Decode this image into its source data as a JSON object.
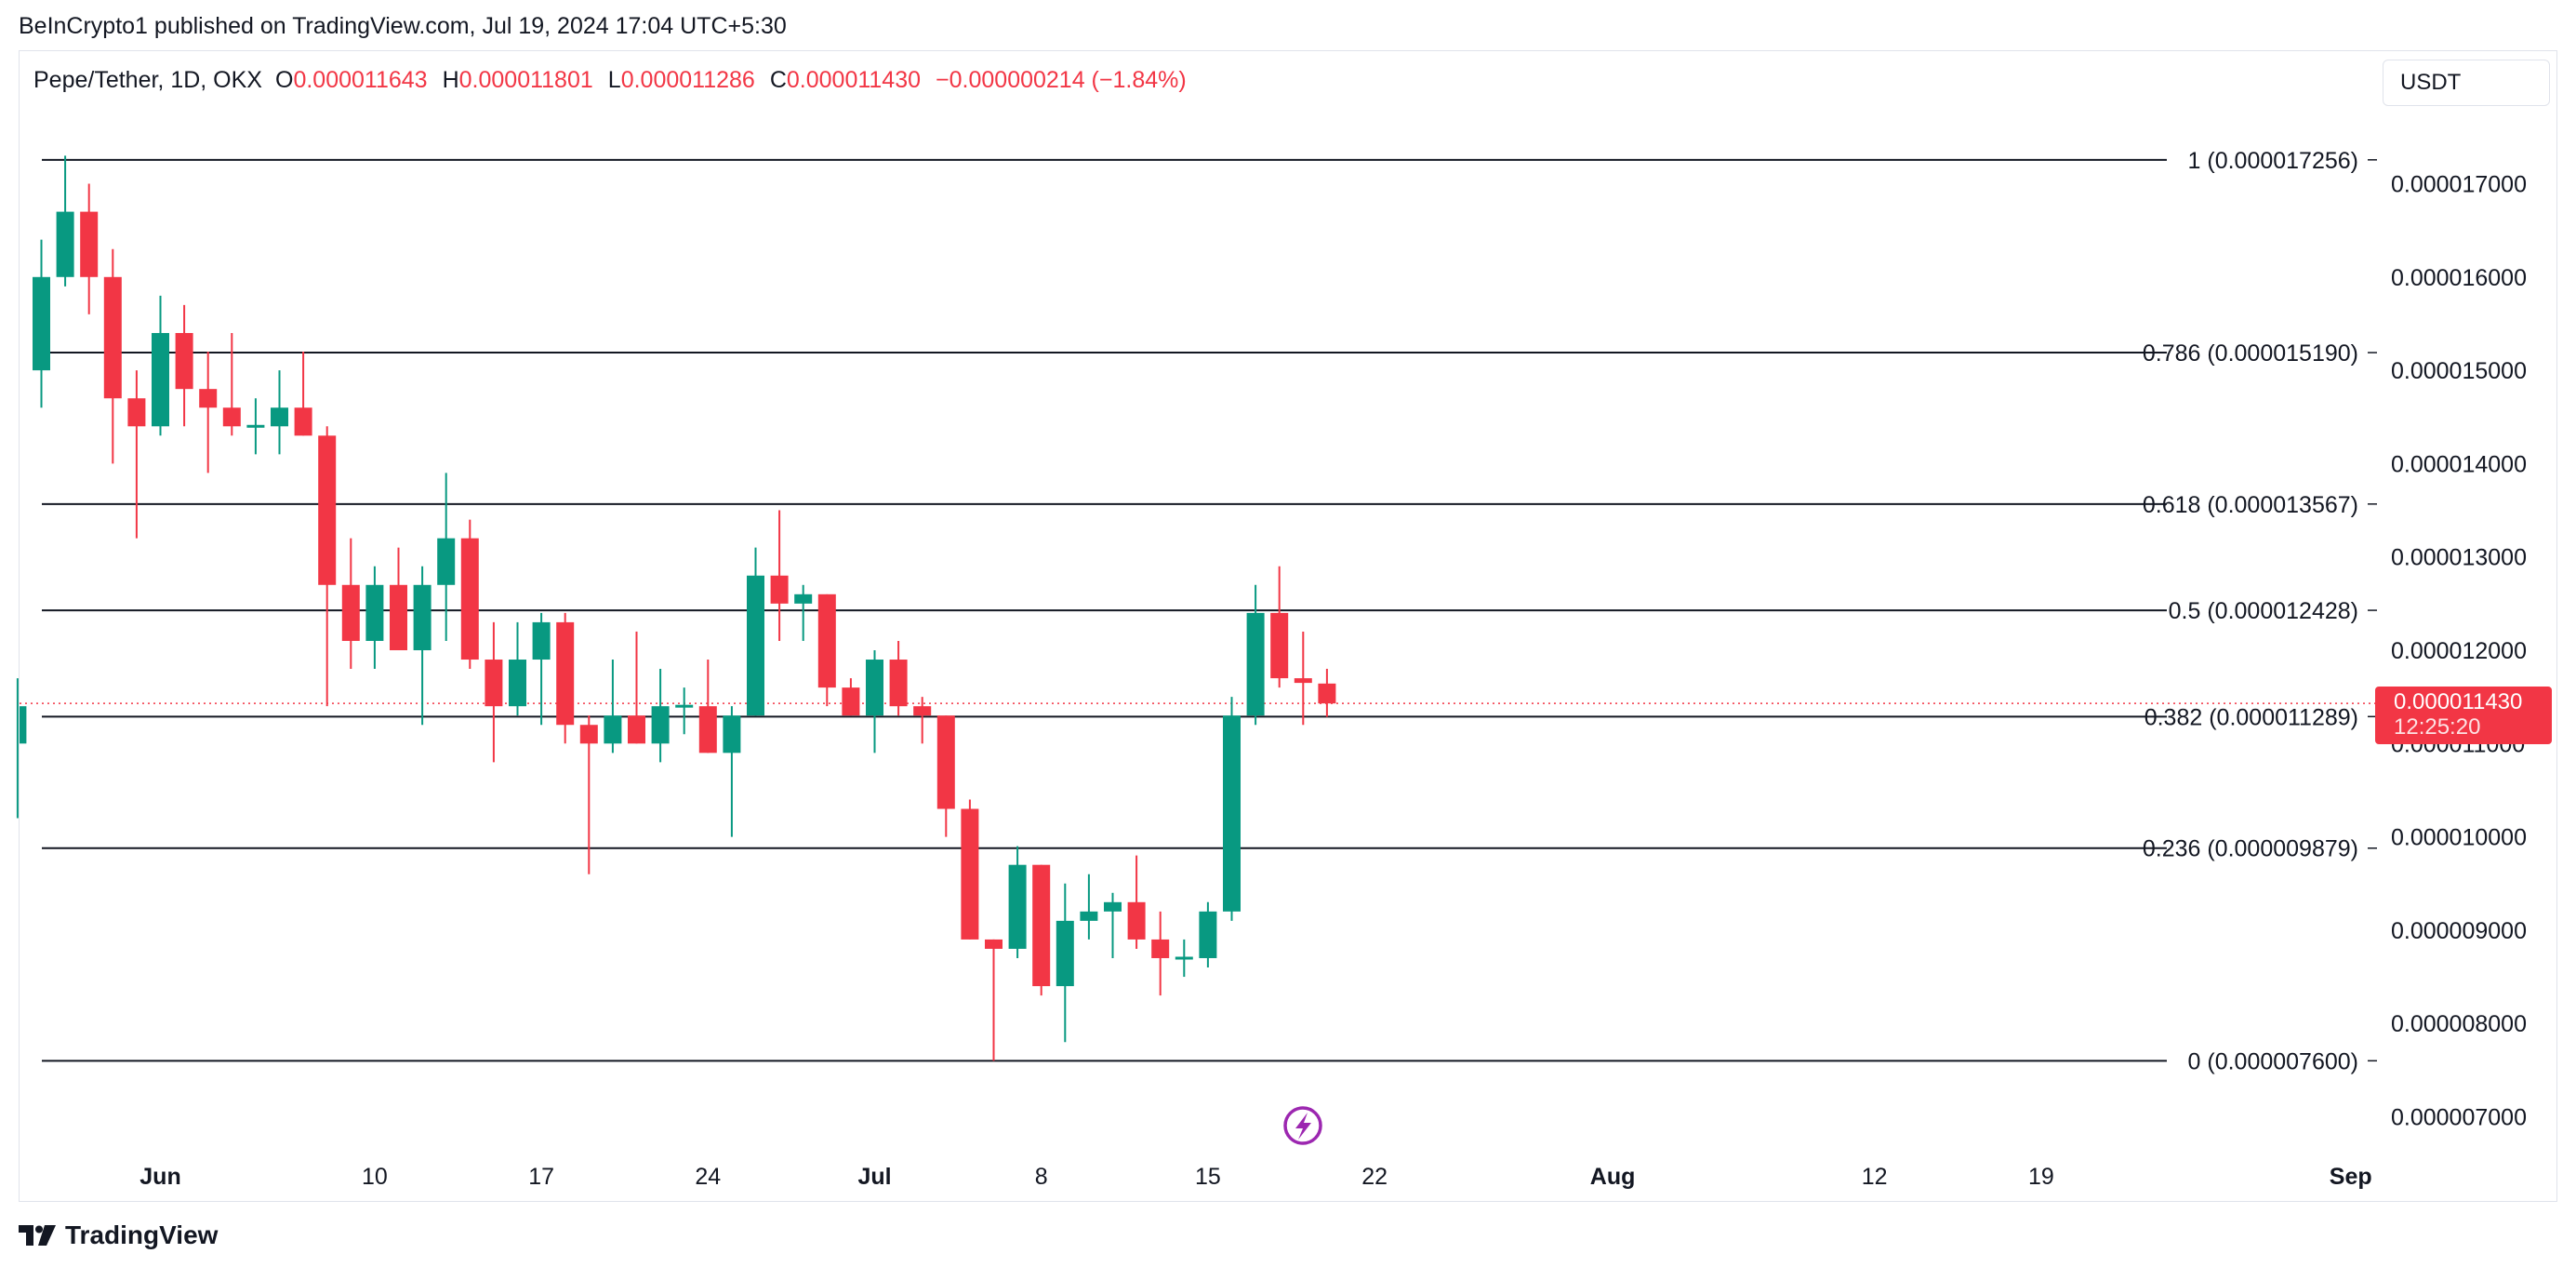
{
  "attribution": "BeInCrypto1 published on TradingView.com, Jul 19, 2024 17:04 UTC+5:30",
  "legend": {
    "symbol": "Pepe/Tether, 1D, OKX",
    "o_label": "O",
    "o_value": "0.000011643",
    "h_label": "H",
    "h_value": "0.000011801",
    "l_label": "L",
    "l_value": "0.000011286",
    "c_label": "C",
    "c_value": "0.000011430",
    "change": "−0.000000214 (−1.84%)"
  },
  "currency_button": "USDT",
  "brand": "TradingView",
  "last_price": {
    "value": "0.000011430",
    "countdown": "12:25:20"
  },
  "colors": {
    "up": "#089981",
    "down": "#f23645",
    "fib_line": "#131722",
    "price_line": "#f23645",
    "lightning": "#9c27b0"
  },
  "chart_data": {
    "type": "candlestick",
    "title": "",
    "x_ticks": [
      {
        "day": 0,
        "label": "Jun"
      },
      {
        "day": 9,
        "label": "10"
      },
      {
        "day": 16,
        "label": "17"
      },
      {
        "day": 23,
        "label": "24"
      },
      {
        "day": 30,
        "label": "Jul"
      },
      {
        "day": 37,
        "label": "8"
      },
      {
        "day": 44,
        "label": "15"
      },
      {
        "day": 51,
        "label": "22"
      },
      {
        "day": 61,
        "label": "Aug"
      },
      {
        "day": 72,
        "label": "12"
      },
      {
        "day": 79,
        "label": "19"
      },
      {
        "day": 92,
        "label": "Sep"
      }
    ],
    "y_range": [
      6.5e-06,
      1.84e-05
    ],
    "y_ticks": [
      "0.000017000",
      "0.000016000",
      "0.000015000",
      "0.000014000",
      "0.000013000",
      "0.000012000",
      "0.000011000",
      "0.000010000",
      "0.000009000",
      "0.000008000",
      "0.000007000"
    ],
    "y_tick_values": [
      1.7e-05,
      1.6e-05,
      1.5e-05,
      1.4e-05,
      1.3e-05,
      1.2e-05,
      1.1e-05,
      1e-05,
      9e-06,
      8e-06,
      7e-06
    ],
    "fib_levels": [
      {
        "value": 1.7256e-05,
        "label": "1 (0.000017256)"
      },
      {
        "value": 1.519e-05,
        "label": "0.786 (0.000015190)"
      },
      {
        "value": 1.3567e-05,
        "label": "0.618 (0.000013567)"
      },
      {
        "value": 1.2428e-05,
        "label": "0.5 (0.000012428)"
      },
      {
        "value": 1.1289e-05,
        "label": "0.382 (0.000011289)"
      },
      {
        "value": 9.879e-06,
        "label": "0.236 (0.000009879)"
      },
      {
        "value": 7.6e-06,
        "label": "0 (0.000007600)"
      }
    ],
    "current_price": 1.143e-05,
    "candles": [
      {
        "d": -6,
        "o": 1.1e-05,
        "h": 1.17e-05,
        "l": 1.02e-05,
        "c": 1.14e-05
      },
      {
        "d": -5,
        "o": 1.5e-05,
        "h": 1.64e-05,
        "l": 1.46e-05,
        "c": 1.6e-05
      },
      {
        "d": -4,
        "o": 1.6e-05,
        "h": 1.73e-05,
        "l": 1.59e-05,
        "c": 1.67e-05
      },
      {
        "d": -3,
        "o": 1.67e-05,
        "h": 1.7e-05,
        "l": 1.56e-05,
        "c": 1.6e-05
      },
      {
        "d": -2,
        "o": 1.6e-05,
        "h": 1.63e-05,
        "l": 1.4e-05,
        "c": 1.47e-05
      },
      {
        "d": -1,
        "o": 1.47e-05,
        "h": 1.5e-05,
        "l": 1.32e-05,
        "c": 1.44e-05
      },
      {
        "d": 0,
        "o": 1.44e-05,
        "h": 1.58e-05,
        "l": 1.43e-05,
        "c": 1.54e-05
      },
      {
        "d": 1,
        "o": 1.54e-05,
        "h": 1.57e-05,
        "l": 1.44e-05,
        "c": 1.48e-05
      },
      {
        "d": 2,
        "o": 1.48e-05,
        "h": 1.52e-05,
        "l": 1.39e-05,
        "c": 1.46e-05
      },
      {
        "d": 3,
        "o": 1.46e-05,
        "h": 1.54e-05,
        "l": 1.43e-05,
        "c": 1.44e-05
      },
      {
        "d": 4,
        "o": 1.44e-05,
        "h": 1.47e-05,
        "l": 1.41e-05,
        "c": 1.44e-05
      },
      {
        "d": 5,
        "o": 1.44e-05,
        "h": 1.5e-05,
        "l": 1.41e-05,
        "c": 1.46e-05
      },
      {
        "d": 6,
        "o": 1.46e-05,
        "h": 1.52e-05,
        "l": 1.43e-05,
        "c": 1.43e-05
      },
      {
        "d": 7,
        "o": 1.43e-05,
        "h": 1.44e-05,
        "l": 1.14e-05,
        "c": 1.27e-05
      },
      {
        "d": 8,
        "o": 1.27e-05,
        "h": 1.32e-05,
        "l": 1.18e-05,
        "c": 1.21e-05
      },
      {
        "d": 9,
        "o": 1.21e-05,
        "h": 1.29e-05,
        "l": 1.18e-05,
        "c": 1.27e-05
      },
      {
        "d": 10,
        "o": 1.27e-05,
        "h": 1.31e-05,
        "l": 1.21e-05,
        "c": 1.2e-05
      },
      {
        "d": 11,
        "o": 1.2e-05,
        "h": 1.29e-05,
        "l": 1.12e-05,
        "c": 1.27e-05
      },
      {
        "d": 12,
        "o": 1.27e-05,
        "h": 1.39e-05,
        "l": 1.21e-05,
        "c": 1.32e-05
      },
      {
        "d": 13,
        "o": 1.32e-05,
        "h": 1.34e-05,
        "l": 1.18e-05,
        "c": 1.19e-05
      },
      {
        "d": 14,
        "o": 1.19e-05,
        "h": 1.23e-05,
        "l": 1.08e-05,
        "c": 1.14e-05
      },
      {
        "d": 15,
        "o": 1.14e-05,
        "h": 1.23e-05,
        "l": 1.13e-05,
        "c": 1.19e-05
      },
      {
        "d": 16,
        "o": 1.19e-05,
        "h": 1.24e-05,
        "l": 1.12e-05,
        "c": 1.23e-05
      },
      {
        "d": 17,
        "o": 1.23e-05,
        "h": 1.24e-05,
        "l": 1.1e-05,
        "c": 1.12e-05
      },
      {
        "d": 18,
        "o": 1.12e-05,
        "h": 1.13e-05,
        "l": 9.6e-06,
        "c": 1.1e-05
      },
      {
        "d": 19,
        "o": 1.1e-05,
        "h": 1.19e-05,
        "l": 1.09e-05,
        "c": 1.13e-05
      },
      {
        "d": 20,
        "o": 1.13e-05,
        "h": 1.22e-05,
        "l": 1.1e-05,
        "c": 1.1e-05
      },
      {
        "d": 21,
        "o": 1.1e-05,
        "h": 1.18e-05,
        "l": 1.08e-05,
        "c": 1.14e-05
      },
      {
        "d": 22,
        "o": 1.14e-05,
        "h": 1.16e-05,
        "l": 1.11e-05,
        "c": 1.14e-05
      },
      {
        "d": 23,
        "o": 1.14e-05,
        "h": 1.19e-05,
        "l": 1.09e-05,
        "c": 1.09e-05
      },
      {
        "d": 24,
        "o": 1.09e-05,
        "h": 1.14e-05,
        "l": 1e-05,
        "c": 1.13e-05
      },
      {
        "d": 25,
        "o": 1.13e-05,
        "h": 1.31e-05,
        "l": 1.13e-05,
        "c": 1.28e-05
      },
      {
        "d": 26,
        "o": 1.28e-05,
        "h": 1.35e-05,
        "l": 1.21e-05,
        "c": 1.25e-05
      },
      {
        "d": 27,
        "o": 1.25e-05,
        "h": 1.27e-05,
        "l": 1.21e-05,
        "c": 1.26e-05
      },
      {
        "d": 28,
        "o": 1.26e-05,
        "h": 1.26e-05,
        "l": 1.14e-05,
        "c": 1.16e-05
      },
      {
        "d": 29,
        "o": 1.16e-05,
        "h": 1.17e-05,
        "l": 1.13e-05,
        "c": 1.13e-05
      },
      {
        "d": 30,
        "o": 1.13e-05,
        "h": 1.2e-05,
        "l": 1.09e-05,
        "c": 1.19e-05
      },
      {
        "d": 31,
        "o": 1.19e-05,
        "h": 1.21e-05,
        "l": 1.13e-05,
        "c": 1.14e-05
      },
      {
        "d": 32,
        "o": 1.14e-05,
        "h": 1.15e-05,
        "l": 1.1e-05,
        "c": 1.13e-05
      },
      {
        "d": 33,
        "o": 1.13e-05,
        "h": 1.13e-05,
        "l": 1e-05,
        "c": 1.03e-05
      },
      {
        "d": 34,
        "o": 1.03e-05,
        "h": 1.04e-05,
        "l": 8.9e-06,
        "c": 8.9e-06
      },
      {
        "d": 35,
        "o": 8.9e-06,
        "h": 8.9e-06,
        "l": 7.6e-06,
        "c": 8.8e-06
      },
      {
        "d": 36,
        "o": 8.8e-06,
        "h": 9.9e-06,
        "l": 8.7e-06,
        "c": 9.7e-06
      },
      {
        "d": 37,
        "o": 9.7e-06,
        "h": 9.7e-06,
        "l": 8.3e-06,
        "c": 8.4e-06
      },
      {
        "d": 38,
        "o": 8.4e-06,
        "h": 9.5e-06,
        "l": 7.8e-06,
        "c": 9.1e-06
      },
      {
        "d": 39,
        "o": 9.1e-06,
        "h": 9.6e-06,
        "l": 8.9e-06,
        "c": 9.2e-06
      },
      {
        "d": 40,
        "o": 9.2e-06,
        "h": 9.4e-06,
        "l": 8.7e-06,
        "c": 9.3e-06
      },
      {
        "d": 41,
        "o": 9.3e-06,
        "h": 9.8e-06,
        "l": 8.8e-06,
        "c": 8.9e-06
      },
      {
        "d": 42,
        "o": 8.9e-06,
        "h": 9.2e-06,
        "l": 8.3e-06,
        "c": 8.7e-06
      },
      {
        "d": 43,
        "o": 8.7e-06,
        "h": 8.9e-06,
        "l": 8.5e-06,
        "c": 8.7e-06
      },
      {
        "d": 44,
        "o": 8.7e-06,
        "h": 9.3e-06,
        "l": 8.6e-06,
        "c": 9.2e-06
      },
      {
        "d": 45,
        "o": 9.2e-06,
        "h": 1.15e-05,
        "l": 9.1e-06,
        "c": 1.13e-05
      },
      {
        "d": 46,
        "o": 1.13e-05,
        "h": 1.27e-05,
        "l": 1.12e-05,
        "c": 1.24e-05
      },
      {
        "d": 47,
        "o": 1.24e-05,
        "h": 1.29e-05,
        "l": 1.16e-05,
        "c": 1.17e-05
      },
      {
        "d": 48,
        "o": 1.17e-05,
        "h": 1.22e-05,
        "l": 1.12e-05,
        "c": 1.165e-05
      },
      {
        "d": 49,
        "o": 1.1643e-05,
        "h": 1.1801e-05,
        "l": 1.1286e-05,
        "c": 1.143e-05
      }
    ]
  }
}
